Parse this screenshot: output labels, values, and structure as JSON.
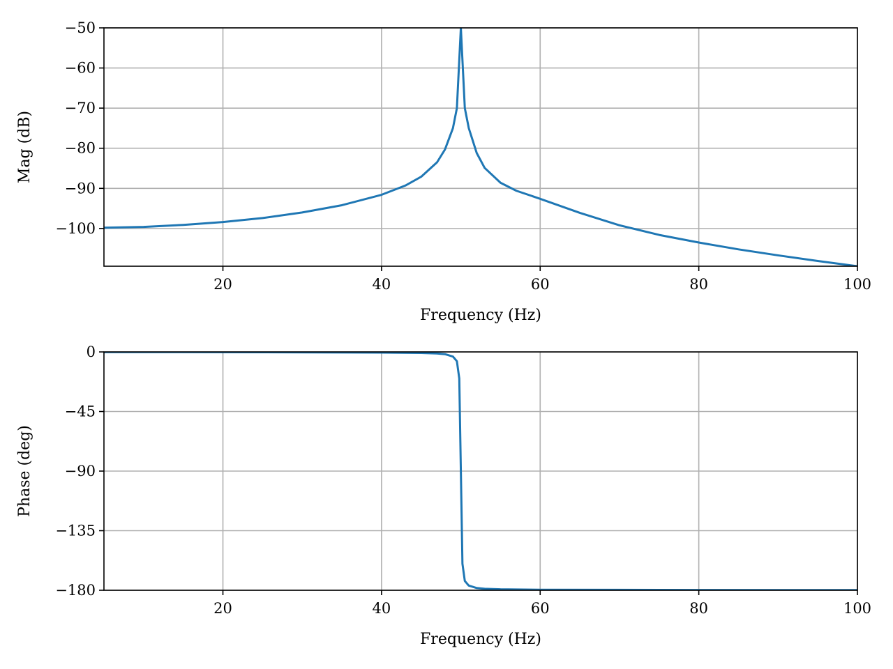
{
  "chart_data": [
    {
      "type": "line",
      "xlabel": "Frequency (Hz)",
      "ylabel": "Mag (dB)",
      "xlim": [
        5,
        100
      ],
      "ylim": [
        -109.4,
        -50
      ],
      "xticks": [
        20,
        40,
        60,
        80,
        100
      ],
      "xtick_labels": [
        "20",
        "40",
        "60",
        "80",
        "100"
      ],
      "yticks": [
        -100,
        -90,
        -80,
        -70,
        -60,
        -50
      ],
      "ytick_labels": [
        "−100",
        "−90",
        "−80",
        "−70",
        "−60",
        "−50"
      ],
      "grid": true,
      "series": [
        {
          "color": "#1f77b4",
          "x": [
            5,
            10,
            15,
            20,
            25,
            30,
            35,
            40,
            43,
            45,
            47,
            48,
            49,
            49.5,
            50,
            50.5,
            51,
            52,
            53,
            55,
            57,
            60,
            65,
            70,
            75,
            80,
            85,
            90,
            95,
            100
          ],
          "y": [
            -99.8,
            -99.6,
            -99.1,
            -98.4,
            -97.4,
            -96.0,
            -94.2,
            -91.6,
            -89.3,
            -87.1,
            -83.5,
            -80.3,
            -75.0,
            -70.0,
            -50,
            -70.0,
            -75.0,
            -81.2,
            -84.9,
            -88.6,
            -90.6,
            -92.6,
            -96.1,
            -99.2,
            -101.6,
            -103.5,
            -105.2,
            -106.7,
            -108.1,
            -109.4
          ]
        }
      ]
    },
    {
      "type": "line",
      "xlabel": "Frequency (Hz)",
      "ylabel": "Phase (deg)",
      "xlim": [
        5,
        100
      ],
      "ylim": [
        -180,
        0
      ],
      "xticks": [
        20,
        40,
        60,
        80,
        100
      ],
      "xtick_labels": [
        "20",
        "40",
        "60",
        "80",
        "100"
      ],
      "yticks": [
        0,
        -45,
        -90,
        -135,
        -180
      ],
      "ytick_labels": [
        "0",
        "−45",
        "−90",
        "−135",
        "−180"
      ],
      "grid": true,
      "series": [
        {
          "color": "#1f77b4",
          "x": [
            5,
            20,
            40,
            45,
            47,
            48,
            49,
            49.5,
            49.8,
            50,
            50.2,
            50.5,
            51,
            52,
            53,
            55,
            60,
            80,
            100
          ],
          "y": [
            -0.1,
            -0.2,
            -0.5,
            -0.8,
            -1.2,
            -1.7,
            -3.5,
            -7,
            -20,
            -90,
            -160,
            -173,
            -176.5,
            -178.3,
            -178.9,
            -179.3,
            -179.6,
            -179.8,
            -179.9
          ]
        }
      ]
    }
  ]
}
